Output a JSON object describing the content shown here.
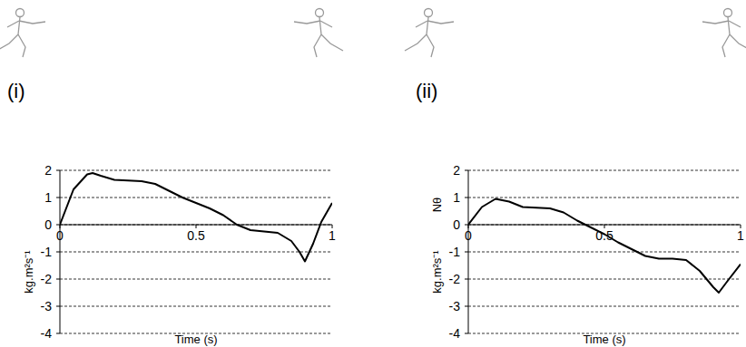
{
  "chart_data": [
    {
      "type": "line",
      "title": "(i)",
      "x_label": "Time (s)",
      "y_label": "kg.m²s⁻¹",
      "x": [
        0,
        0.05,
        0.1,
        0.12,
        0.15,
        0.2,
        0.3,
        0.35,
        0.4,
        0.45,
        0.5,
        0.55,
        0.6,
        0.65,
        0.7,
        0.75,
        0.8,
        0.85,
        0.88,
        0.9,
        0.93,
        0.96,
        1.0
      ],
      "values": [
        0,
        1.3,
        1.85,
        1.9,
        1.8,
        1.65,
        1.6,
        1.5,
        1.25,
        1.0,
        0.8,
        0.6,
        0.35,
        0.0,
        -0.2,
        -0.25,
        -0.3,
        -0.6,
        -1.0,
        -1.35,
        -0.7,
        0.1,
        0.8
      ],
      "color": "#000000",
      "xlim": [
        0,
        1
      ],
      "ylim": [
        -4,
        2
      ],
      "xticks": [
        0,
        0.5,
        1
      ],
      "yticks": [
        -4,
        -3,
        -2,
        -1,
        0,
        1,
        2
      ],
      "grid": true
    },
    {
      "type": "line",
      "title": "(ii)",
      "x_label": "Time (s)",
      "y_label": "kg.m²s⁻¹",
      "annotations": [
        "Nθ"
      ],
      "x": [
        0,
        0.05,
        0.1,
        0.15,
        0.2,
        0.3,
        0.35,
        0.4,
        0.45,
        0.5,
        0.55,
        0.6,
        0.65,
        0.7,
        0.75,
        0.8,
        0.85,
        0.9,
        0.92,
        0.95,
        1.0
      ],
      "values": [
        0,
        0.65,
        0.95,
        0.85,
        0.65,
        0.6,
        0.45,
        0.15,
        -0.1,
        -0.35,
        -0.65,
        -0.9,
        -1.15,
        -1.25,
        -1.25,
        -1.3,
        -1.7,
        -2.3,
        -2.5,
        -2.1,
        -1.45
      ],
      "color": "#000000",
      "xlim": [
        0,
        1
      ],
      "ylim": [
        -4,
        2
      ],
      "xticks": [
        0,
        0.5,
        1
      ],
      "yticks": [
        -4,
        -3,
        -2,
        -1,
        0,
        1,
        2
      ],
      "grid": true
    }
  ]
}
